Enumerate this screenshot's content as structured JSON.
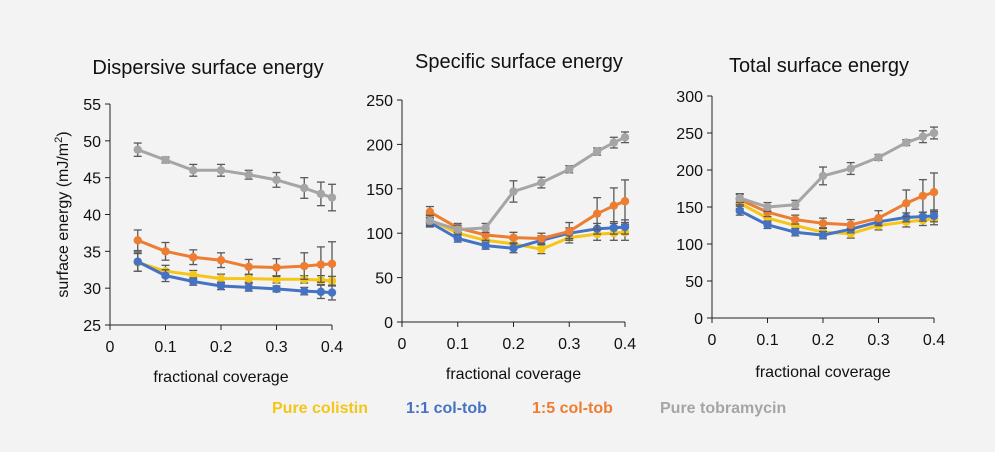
{
  "colors": {
    "pure_colistin": "#f5c518",
    "col_tob_1_1": "#4472c4",
    "col_tob_1_5": "#ed7d31",
    "pure_tobramycin": "#a5a5a5",
    "error_bar": "#595959",
    "axis": "#222222"
  },
  "legend": [
    {
      "label": "Pure colistin",
      "color": "#f5c518"
    },
    {
      "label": "1:1 col-tob",
      "color": "#4472c4"
    },
    {
      "label": "1:5 col-tob",
      "color": "#ed7d31"
    },
    {
      "label": "Pure tobramycin",
      "color": "#a5a5a5"
    }
  ],
  "chart_data": [
    {
      "type": "line",
      "title": "Dispersive surface energy",
      "xlabel": "fractional coverage",
      "ylabel": "surface energy (mJ/m",
      "ylabel_sup": "2",
      "ylabel_end": ")",
      "xlim": [
        0,
        0.4
      ],
      "ylim": [
        25,
        55
      ],
      "xticks": [
        "0",
        "0.1",
        "0.2",
        "0.3",
        "0.4"
      ],
      "yticks": [
        "25",
        "30",
        "35",
        "40",
        "45",
        "50",
        "55"
      ],
      "x": [
        0.05,
        0.1,
        0.15,
        0.2,
        0.25,
        0.3,
        0.35,
        0.38,
        0.4
      ],
      "series": [
        {
          "name": "Pure colistin",
          "values": [
            33.5,
            32.3,
            31.8,
            31.3,
            31.3,
            31.2,
            31.2,
            31.1,
            31.0
          ],
          "errors": [
            1.2,
            0.8,
            0.6,
            0.6,
            0.5,
            0.5,
            0.5,
            0.6,
            0.6
          ]
        },
        {
          "name": "1:1 col-tob",
          "values": [
            33.6,
            31.7,
            30.9,
            30.3,
            30.1,
            29.9,
            29.6,
            29.5,
            29.4
          ],
          "errors": [
            1.3,
            0.8,
            0.5,
            0.5,
            0.5,
            0.4,
            0.5,
            0.9,
            1.0
          ]
        },
        {
          "name": "1:5 col-tob",
          "values": [
            36.5,
            35.0,
            34.2,
            33.8,
            32.9,
            32.8,
            33.0,
            33.2,
            33.3
          ],
          "errors": [
            1.4,
            1.2,
            1.0,
            1.0,
            1.0,
            1.2,
            1.8,
            2.4,
            3.0
          ]
        },
        {
          "name": "Pure tobramycin",
          "values": [
            48.8,
            47.4,
            46.0,
            46.0,
            45.4,
            44.7,
            43.6,
            42.8,
            42.3
          ],
          "errors": [
            0.9,
            0.4,
            0.8,
            0.8,
            0.6,
            1.0,
            1.4,
            1.6,
            1.8
          ]
        }
      ]
    },
    {
      "type": "line",
      "title": "Specific surface energy",
      "xlabel": "fractional coverage",
      "ylabel": "",
      "xlim": [
        0,
        0.4
      ],
      "ylim": [
        0,
        250
      ],
      "xticks": [
        "0",
        "0.1",
        "0.2",
        "0.3",
        "0.4"
      ],
      "yticks": [
        "0",
        "50",
        "100",
        "150",
        "200",
        "250"
      ],
      "x": [
        0.05,
        0.1,
        0.15,
        0.2,
        0.25,
        0.3,
        0.35,
        0.38,
        0.4
      ],
      "series": [
        {
          "name": "Pure colistin",
          "values": [
            115,
            100,
            92,
            88,
            82,
            95,
            99,
            100,
            101
          ],
          "errors": [
            6,
            5,
            5,
            5,
            5,
            6,
            7,
            8,
            9
          ]
        },
        {
          "name": "1:1 col-tob",
          "values": [
            112,
            94,
            86,
            83,
            92,
            100,
            105,
            106,
            107
          ],
          "errors": [
            5,
            4,
            4,
            5,
            5,
            6,
            6,
            7,
            8
          ]
        },
        {
          "name": "1:5 col-tob",
          "values": [
            124,
            106,
            98,
            95,
            94,
            102,
            122,
            131,
            136
          ],
          "errors": [
            6,
            5,
            6,
            6,
            6,
            10,
            18,
            20,
            24
          ]
        },
        {
          "name": "Pure tobramycin",
          "values": [
            114,
            104,
            106,
            147,
            157,
            172,
            192,
            202,
            208
          ],
          "errors": [
            6,
            5,
            5,
            12,
            6,
            4,
            4,
            6,
            6
          ]
        }
      ]
    },
    {
      "type": "line",
      "title": "Total surface energy",
      "xlabel": "fractional coverage",
      "ylabel": "",
      "xlim": [
        0,
        0.4
      ],
      "ylim": [
        0,
        300
      ],
      "xticks": [
        "0",
        "0.1",
        "0.2",
        "0.3",
        "0.4"
      ],
      "yticks": [
        "0",
        "50",
        "100",
        "150",
        "200",
        "250",
        "300"
      ],
      "x": [
        0.05,
        0.1,
        0.15,
        0.2,
        0.25,
        0.3,
        0.35,
        0.38,
        0.4
      ],
      "series": [
        {
          "name": "Pure colistin",
          "values": [
            155,
            135,
            125,
            116,
            114,
            125,
            130,
            132,
            134
          ],
          "errors": [
            7,
            6,
            6,
            6,
            6,
            6,
            7,
            7,
            8
          ]
        },
        {
          "name": "1:1 col-tob",
          "values": [
            145,
            126,
            116,
            112,
            120,
            130,
            136,
            137,
            138
          ],
          "errors": [
            6,
            5,
            5,
            5,
            5,
            5,
            6,
            6,
            8
          ]
        },
        {
          "name": "1:5 col-tob",
          "values": [
            160,
            143,
            133,
            128,
            126,
            135,
            155,
            165,
            170
          ],
          "errors": [
            7,
            6,
            6,
            7,
            7,
            10,
            18,
            22,
            26
          ]
        },
        {
          "name": "Pure tobramycin",
          "values": [
            162,
            150,
            153,
            192,
            202,
            217,
            237,
            245,
            250
          ],
          "errors": [
            6,
            6,
            6,
            12,
            8,
            4,
            4,
            8,
            8
          ]
        }
      ]
    }
  ]
}
